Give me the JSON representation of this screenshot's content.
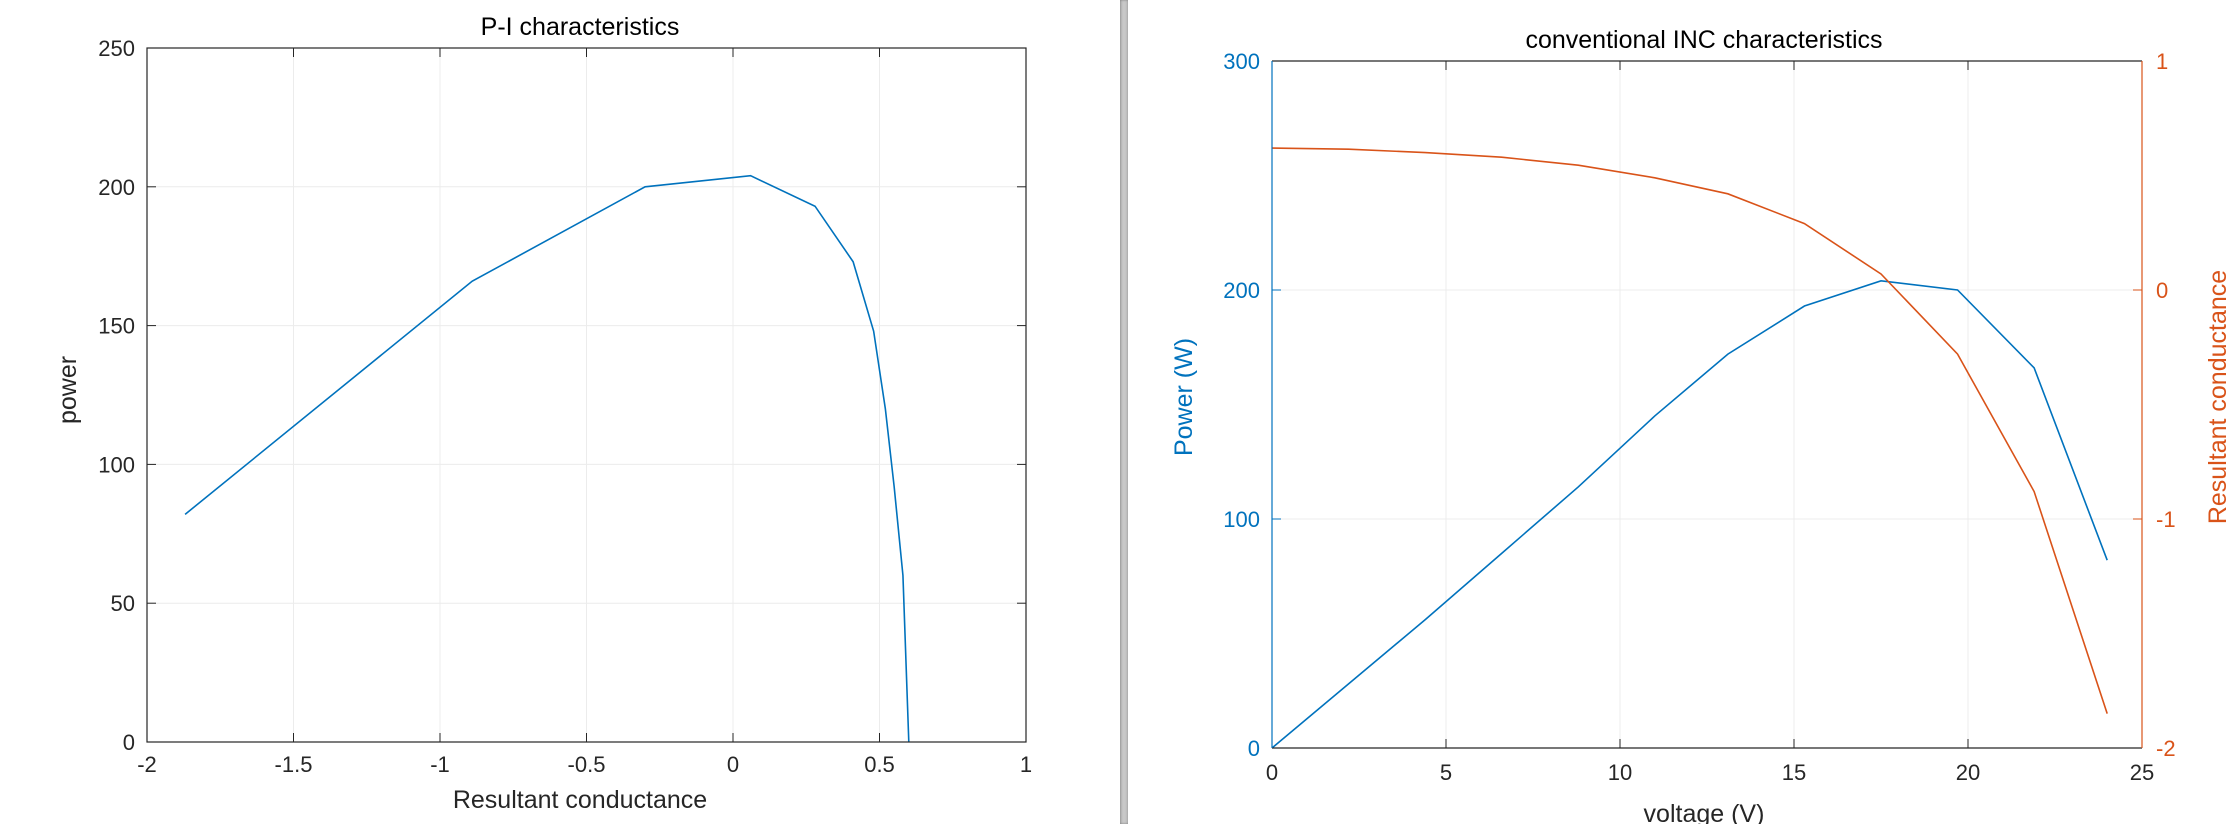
{
  "chart_data": [
    {
      "type": "line",
      "title": "P-I characteristics",
      "xlabel": "Resultant conductance",
      "ylabel": "power",
      "xlim": [
        -2,
        1
      ],
      "ylim": [
        0,
        250
      ],
      "xticks": [
        -2,
        -1.5,
        -1,
        -0.5,
        0,
        0.5,
        1
      ],
      "yticks": [
        0,
        50,
        100,
        150,
        200,
        250
      ],
      "xtick_labels": [
        "-2",
        "-1.5",
        "-1",
        "-0.5",
        "0",
        "0.5",
        "1"
      ],
      "ytick_labels": [
        "0",
        "50",
        "100",
        "150",
        "200",
        "250"
      ],
      "grid": true,
      "series": [
        {
          "color": "#0072bd",
          "x": [
            -1.87,
            -0.89,
            -0.3,
            0.06,
            0.28,
            0.41,
            0.48,
            0.52,
            0.55,
            0.58,
            0.6
          ],
          "y": [
            82,
            166,
            200,
            204,
            193,
            173,
            148,
            120,
            92,
            60,
            0
          ]
        }
      ]
    },
    {
      "type": "line",
      "title": "conventional INC characteristics",
      "xlabel": "voltage (V)",
      "ylabel": "Power (W)",
      "ylabel_right": "Resultant conductance",
      "xlim": [
        0,
        25
      ],
      "ylim": [
        0,
        300
      ],
      "ylim_right": [
        -2,
        1
      ],
      "xticks": [
        0,
        5,
        10,
        15,
        20,
        25
      ],
      "yticks": [
        0,
        100,
        200,
        300
      ],
      "yticks_right": [
        -2,
        -1,
        0,
        1
      ],
      "xtick_labels": [
        "0",
        "5",
        "10",
        "15",
        "20",
        "25"
      ],
      "ytick_labels": [
        "0",
        "100",
        "200",
        "300"
      ],
      "ytick_labels_right": [
        "-2",
        "-1",
        "0",
        "1"
      ],
      "left_axis_color": "#0072bd",
      "right_axis_color": "#d95319",
      "grid": true,
      "series": [
        {
          "axis": "left",
          "color": "#0072bd",
          "x": [
            0,
            2.2,
            4.4,
            6.6,
            8.8,
            11,
            13.1,
            15.3,
            17.5,
            19.7,
            21.9,
            24
          ],
          "y": [
            0,
            28,
            56,
            85,
            114,
            145,
            172,
            193,
            204,
            200,
            166,
            82
          ]
        },
        {
          "axis": "right",
          "color": "#d95319",
          "x": [
            0,
            2.2,
            4.4,
            6.6,
            8.8,
            11,
            13.1,
            15.3,
            17.5,
            19.7,
            21.9,
            24
          ],
          "y": [
            0.62,
            0.615,
            0.6,
            0.58,
            0.545,
            0.49,
            0.42,
            0.29,
            0.07,
            -0.28,
            -0.88,
            -1.85
          ]
        }
      ]
    }
  ]
}
